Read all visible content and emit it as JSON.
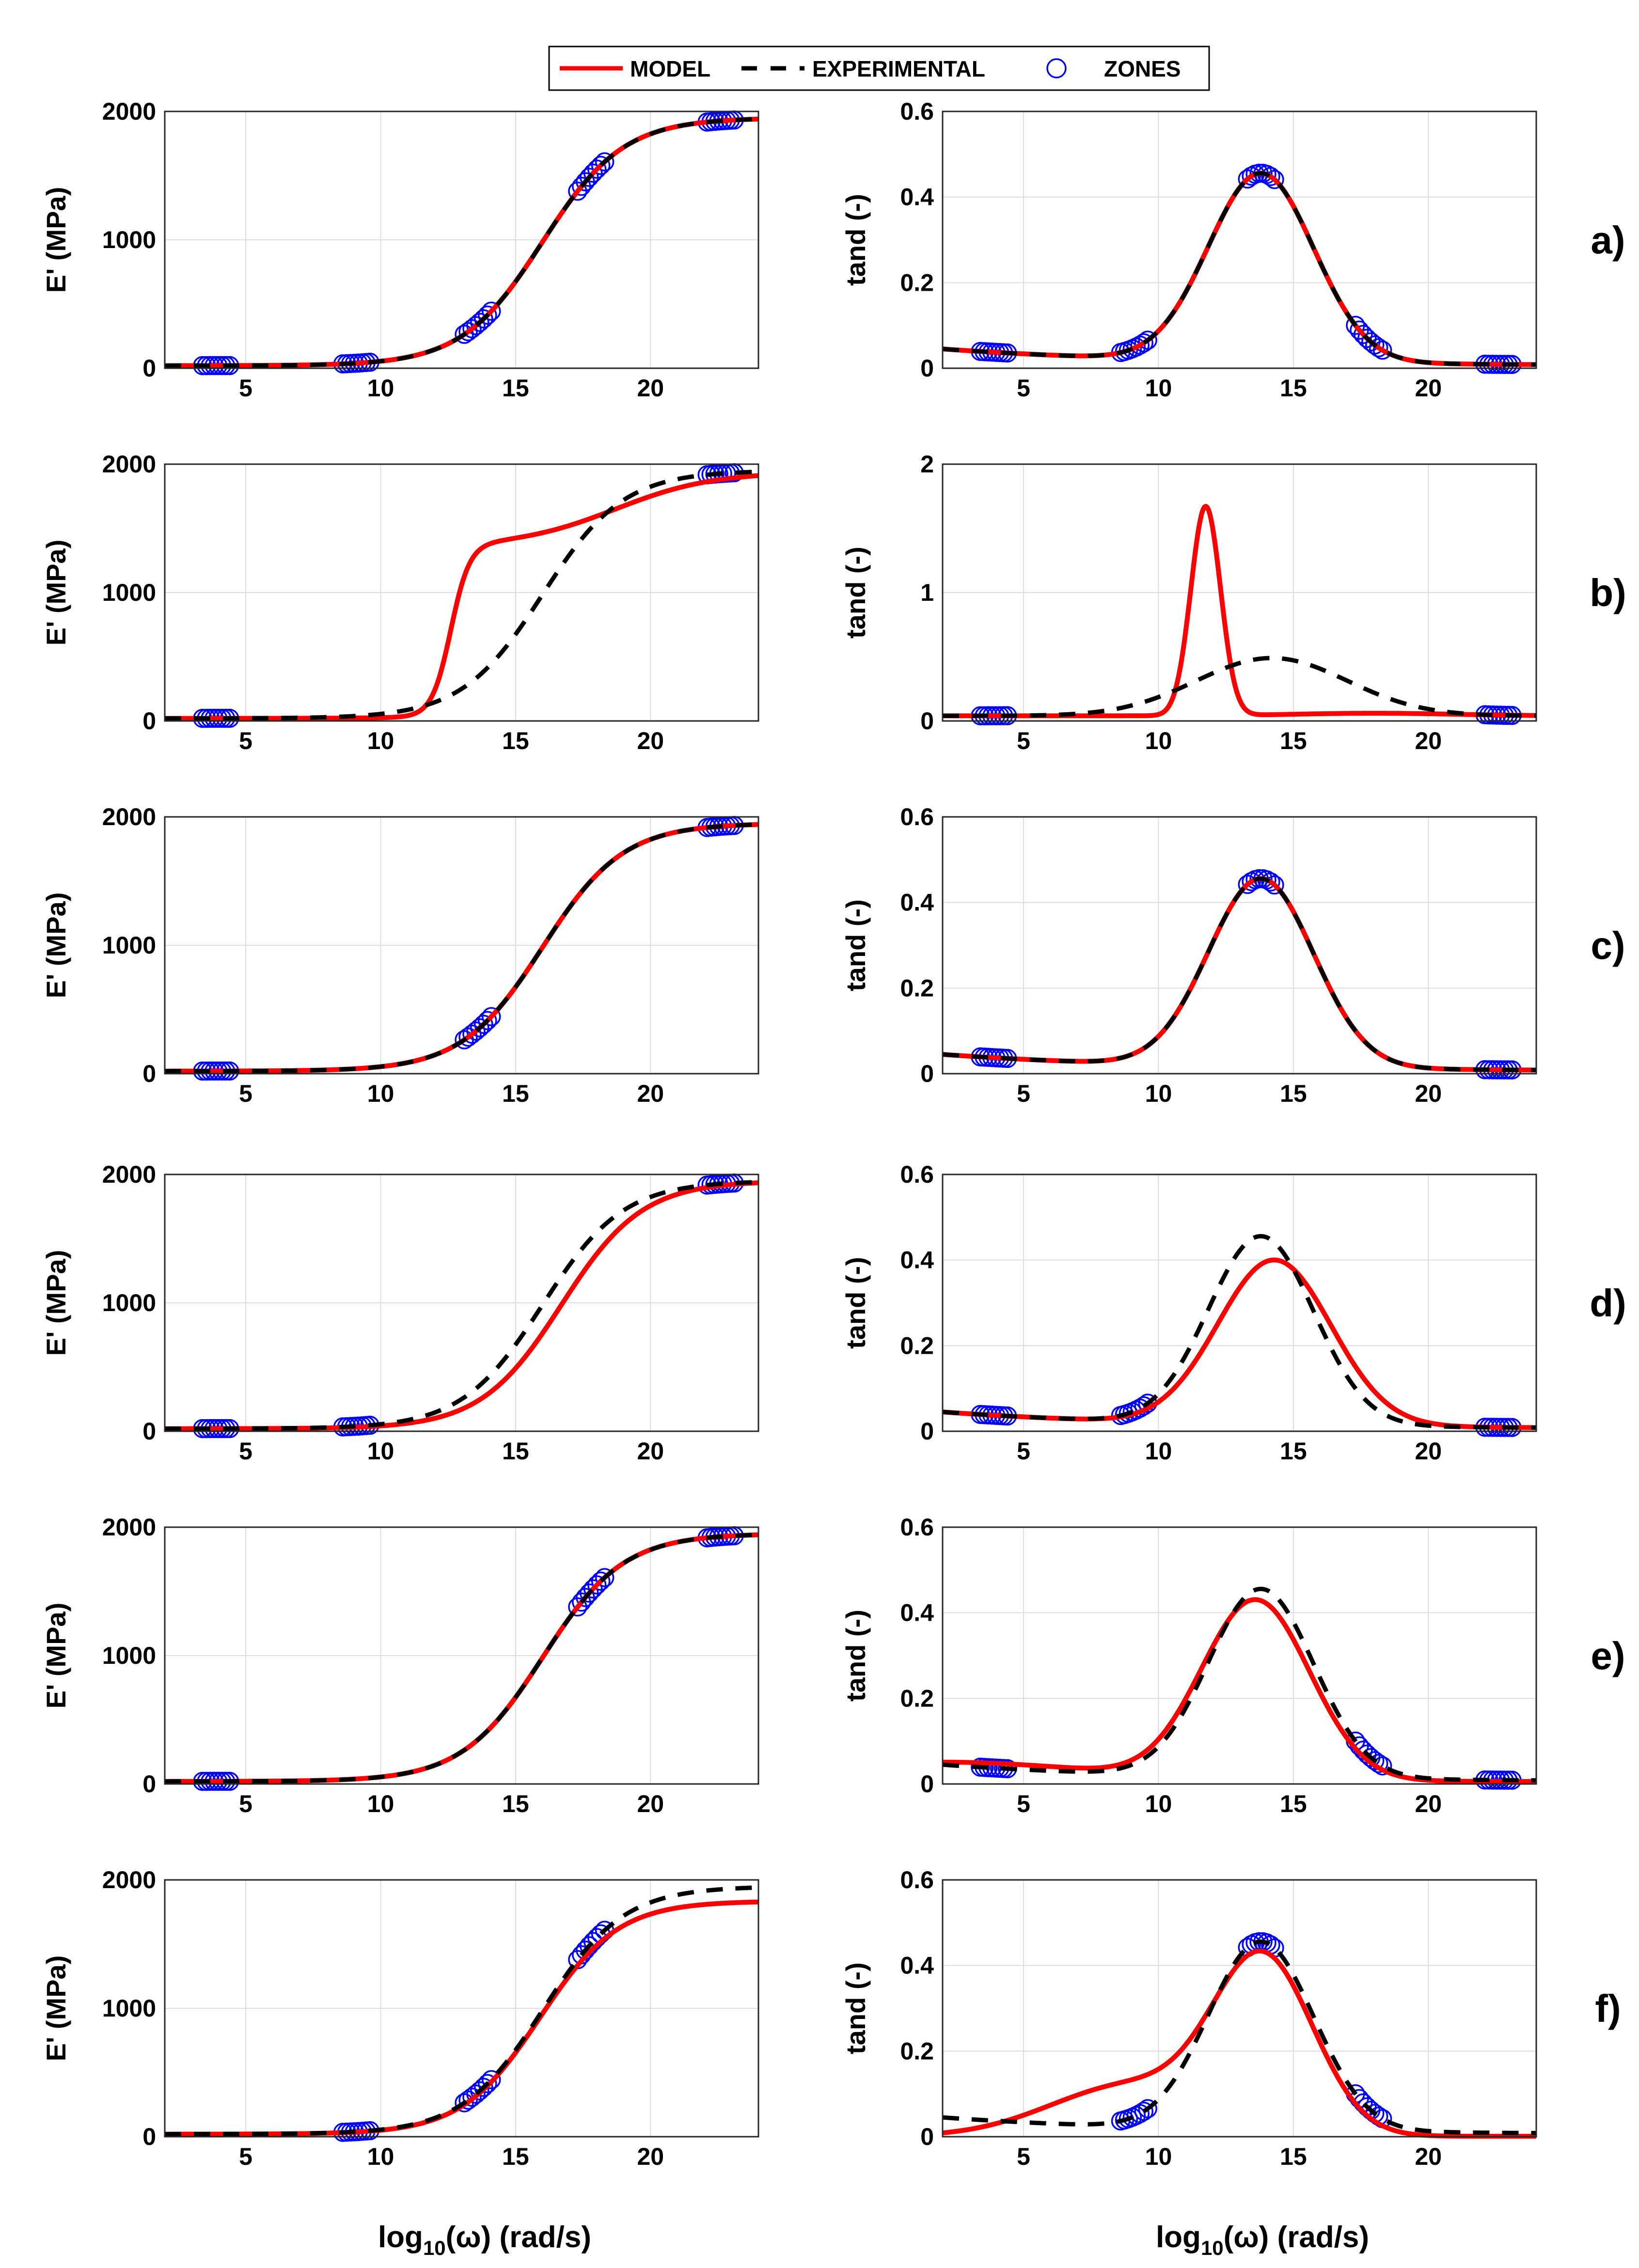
{
  "legend": {
    "model_label": "MODEL",
    "experimental_label": "EXPERIMENTAL",
    "zones_label": "ZONES"
  },
  "colors": {
    "model": "#ff0000",
    "experimental": "#000000",
    "zones": "#0000ff",
    "grid": "#dcdcdc"
  },
  "panel_labels": [
    "a)",
    "b)",
    "c)",
    "d)",
    "e)",
    "f)"
  ],
  "chart_data": [
    {
      "type": "line",
      "panel": "a)",
      "column": "storage-modulus",
      "ylabel": "E' (MPa)",
      "xlim": [
        2,
        24
      ],
      "ylim": [
        0,
        2000
      ],
      "xticks": [
        5,
        10,
        15,
        20
      ],
      "yticks": [
        0,
        1000,
        2000
      ],
      "grid": true,
      "series": [
        {
          "name": "MODEL"
        },
        {
          "name": "EXPERIMENTAL"
        },
        {
          "name": "ZONES",
          "x_ranges": [
            [
              3.4,
              4.4
            ],
            [
              8.6,
              9.6
            ],
            [
              13.1,
              14.1
            ],
            [
              17.3,
              18.3
            ],
            [
              22.1,
              23.1
            ]
          ]
        }
      ]
    },
    {
      "type": "line",
      "panel": "a)",
      "column": "loss-factor",
      "ylabel": "tand (-)",
      "xlim": [
        2,
        24
      ],
      "ylim": [
        0,
        0.6
      ],
      "xticks": [
        5,
        10,
        15,
        20
      ],
      "yticks": [
        0,
        0.2,
        0.4,
        0.6
      ],
      "grid": true,
      "series": [
        {
          "name": "MODEL"
        },
        {
          "name": "EXPERIMENTAL"
        },
        {
          "name": "ZONES",
          "x_ranges": [
            [
              3.4,
              4.4
            ],
            [
              8.6,
              9.6
            ],
            [
              13.3,
              14.3
            ],
            [
              17.3,
              18.3
            ],
            [
              22.1,
              23.1
            ]
          ]
        }
      ]
    },
    {
      "type": "line",
      "panel": "b)",
      "column": "storage-modulus",
      "ylabel": "E' (MPa)",
      "xlim": [
        2,
        24
      ],
      "ylim": [
        0,
        2000
      ],
      "xticks": [
        5,
        10,
        15,
        20
      ],
      "yticks": [
        0,
        1000,
        2000
      ],
      "grid": true,
      "series": [
        {
          "name": "MODEL"
        },
        {
          "name": "EXPERIMENTAL"
        },
        {
          "name": "ZONES",
          "x_ranges": [
            [
              3.4,
              4.4
            ],
            [
              22.1,
              23.1
            ]
          ]
        }
      ]
    },
    {
      "type": "line",
      "panel": "b)",
      "column": "loss-factor",
      "ylabel": "tand (-)",
      "xlim": [
        2,
        24
      ],
      "ylim": [
        0,
        2
      ],
      "xticks": [
        5,
        10,
        15,
        20
      ],
      "yticks": [
        0,
        1,
        2
      ],
      "grid": true,
      "series": [
        {
          "name": "MODEL"
        },
        {
          "name": "EXPERIMENTAL"
        },
        {
          "name": "ZONES",
          "x_ranges": [
            [
              3.4,
              4.4
            ],
            [
              22.1,
              23.1
            ]
          ]
        }
      ]
    },
    {
      "type": "line",
      "panel": "c)",
      "column": "storage-modulus",
      "ylabel": "E' (MPa)",
      "xlim": [
        2,
        24
      ],
      "ylim": [
        0,
        2000
      ],
      "xticks": [
        5,
        10,
        15,
        20
      ],
      "yticks": [
        0,
        1000,
        2000
      ],
      "grid": true,
      "series": [
        {
          "name": "MODEL"
        },
        {
          "name": "EXPERIMENTAL"
        },
        {
          "name": "ZONES",
          "x_ranges": [
            [
              3.4,
              4.4
            ],
            [
              13.1,
              14.1
            ],
            [
              22.1,
              23.1
            ]
          ]
        }
      ]
    },
    {
      "type": "line",
      "panel": "c)",
      "column": "loss-factor",
      "ylabel": "tand (-)",
      "xlim": [
        2,
        24
      ],
      "ylim": [
        0,
        0.6
      ],
      "xticks": [
        5,
        10,
        15,
        20
      ],
      "yticks": [
        0,
        0.2,
        0.4,
        0.6
      ],
      "grid": true,
      "series": [
        {
          "name": "MODEL"
        },
        {
          "name": "EXPERIMENTAL"
        },
        {
          "name": "ZONES",
          "x_ranges": [
            [
              3.4,
              4.4
            ],
            [
              13.3,
              14.3
            ],
            [
              22.1,
              23.1
            ]
          ]
        }
      ]
    },
    {
      "type": "line",
      "panel": "d)",
      "column": "storage-modulus",
      "ylabel": "E' (MPa)",
      "xlim": [
        2,
        24
      ],
      "ylim": [
        0,
        2000
      ],
      "xticks": [
        5,
        10,
        15,
        20
      ],
      "yticks": [
        0,
        1000,
        2000
      ],
      "grid": true,
      "series": [
        {
          "name": "MODEL"
        },
        {
          "name": "EXPERIMENTAL"
        },
        {
          "name": "ZONES",
          "x_ranges": [
            [
              3.4,
              4.4
            ],
            [
              8.6,
              9.6
            ],
            [
              22.1,
              23.1
            ]
          ]
        }
      ]
    },
    {
      "type": "line",
      "panel": "d)",
      "column": "loss-factor",
      "ylabel": "tand (-)",
      "xlim": [
        2,
        24
      ],
      "ylim": [
        0,
        0.6
      ],
      "xticks": [
        5,
        10,
        15,
        20
      ],
      "yticks": [
        0,
        0.2,
        0.4,
        0.6
      ],
      "grid": true,
      "series": [
        {
          "name": "MODEL"
        },
        {
          "name": "EXPERIMENTAL"
        },
        {
          "name": "ZONES",
          "x_ranges": [
            [
              3.4,
              4.4
            ],
            [
              8.6,
              9.6
            ],
            [
              22.1,
              23.1
            ]
          ]
        }
      ]
    },
    {
      "type": "line",
      "panel": "e)",
      "column": "storage-modulus",
      "ylabel": "E' (MPa)",
      "xlim": [
        2,
        24
      ],
      "ylim": [
        0,
        2000
      ],
      "xticks": [
        5,
        10,
        15,
        20
      ],
      "yticks": [
        0,
        1000,
        2000
      ],
      "grid": true,
      "series": [
        {
          "name": "MODEL"
        },
        {
          "name": "EXPERIMENTAL"
        },
        {
          "name": "ZONES",
          "x_ranges": [
            [
              3.4,
              4.4
            ],
            [
              17.3,
              18.3
            ],
            [
              22.1,
              23.1
            ]
          ]
        }
      ]
    },
    {
      "type": "line",
      "panel": "e)",
      "column": "loss-factor",
      "ylabel": "tand (-)",
      "xlim": [
        2,
        24
      ],
      "ylim": [
        0,
        0.6
      ],
      "xticks": [
        5,
        10,
        15,
        20
      ],
      "yticks": [
        0,
        0.2,
        0.4,
        0.6
      ],
      "grid": true,
      "series": [
        {
          "name": "MODEL"
        },
        {
          "name": "EXPERIMENTAL"
        },
        {
          "name": "ZONES",
          "x_ranges": [
            [
              3.4,
              4.4
            ],
            [
              17.3,
              18.3
            ],
            [
              22.1,
              23.1
            ]
          ]
        }
      ]
    },
    {
      "type": "line",
      "panel": "f)",
      "column": "storage-modulus",
      "ylabel": "E' (MPa)",
      "xlabel": "log10(ω) (rad/s)",
      "xlim": [
        2,
        24
      ],
      "ylim": [
        0,
        2000
      ],
      "xticks": [
        5,
        10,
        15,
        20
      ],
      "yticks": [
        0,
        1000,
        2000
      ],
      "grid": true,
      "series": [
        {
          "name": "MODEL"
        },
        {
          "name": "EXPERIMENTAL"
        },
        {
          "name": "ZONES",
          "x_ranges": [
            [
              8.6,
              9.6
            ],
            [
              13.1,
              14.1
            ],
            [
              17.3,
              18.3
            ]
          ]
        }
      ]
    },
    {
      "type": "line",
      "panel": "f)",
      "column": "loss-factor",
      "ylabel": "tand (-)",
      "xlabel": "log10(ω) (rad/s)",
      "xlim": [
        2,
        24
      ],
      "ylim": [
        0,
        0.6
      ],
      "xticks": [
        5,
        10,
        15,
        20
      ],
      "yticks": [
        0,
        0.2,
        0.4,
        0.6
      ],
      "grid": true,
      "series": [
        {
          "name": "MODEL"
        },
        {
          "name": "EXPERIMENTAL"
        },
        {
          "name": "ZONES",
          "x_ranges": [
            [
              8.6,
              9.6
            ],
            [
              13.3,
              14.3
            ],
            [
              17.3,
              18.3
            ]
          ]
        }
      ]
    }
  ],
  "xlabel_text": {
    "base": "log",
    "sub": "10",
    "rest": "(ω) (rad/s)"
  }
}
